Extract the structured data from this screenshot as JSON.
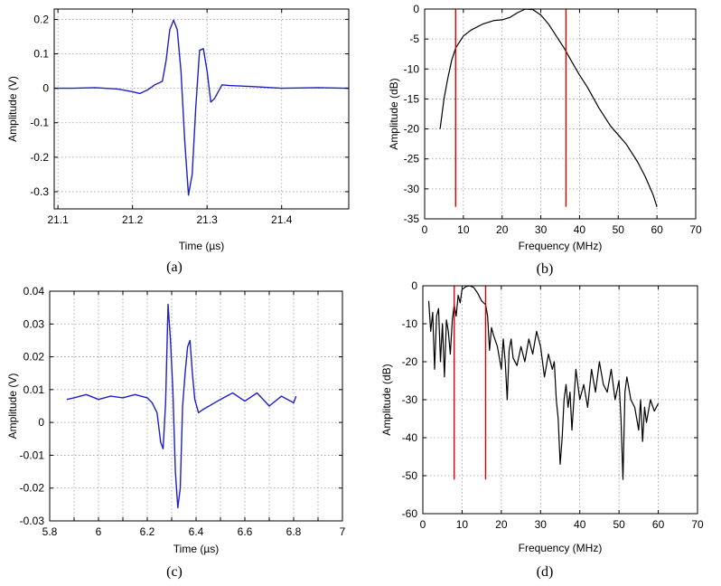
{
  "chart_data": [
    {
      "type": "line",
      "panel": "a",
      "caption": "(a)",
      "title": "",
      "xlabel": "Time (µs)",
      "ylabel": "Amplitude (V)",
      "xlim": [
        21.095,
        21.49
      ],
      "ylim": [
        -0.35,
        0.23
      ],
      "xticks": [
        21.1,
        21.2,
        21.3,
        21.4
      ],
      "xtick_labels": [
        "21.1",
        "21.2",
        "21.3",
        "21.4"
      ],
      "yticks": [
        -0.3,
        -0.2,
        -0.1,
        0,
        0.1,
        0.2
      ],
      "ytick_labels": [
        "-0.3",
        "-0.2",
        "-0.1",
        "0",
        "0.1",
        "0.2"
      ],
      "grid": true,
      "series": [
        {
          "name": "waveform",
          "color": "#1f1fc8",
          "x": [
            21.095,
            21.12,
            21.15,
            21.18,
            21.2,
            21.21,
            21.22,
            21.23,
            21.24,
            21.245,
            21.25,
            21.255,
            21.26,
            21.265,
            21.27,
            21.275,
            21.28,
            21.285,
            21.29,
            21.295,
            21.3,
            21.305,
            21.31,
            21.32,
            21.33,
            21.36,
            21.4,
            21.45,
            21.49
          ],
          "y": [
            0.0,
            0.0,
            0.002,
            -0.002,
            -0.01,
            -0.015,
            -0.005,
            0.01,
            0.02,
            0.08,
            0.17,
            0.198,
            0.17,
            0.05,
            -0.15,
            -0.31,
            -0.25,
            -0.05,
            0.11,
            0.115,
            0.05,
            -0.04,
            -0.03,
            0.01,
            0.008,
            0.005,
            0.0,
            0.002,
            0.0
          ]
        }
      ]
    },
    {
      "type": "line",
      "panel": "b",
      "caption": "(b)",
      "title": "",
      "xlabel": "Frequency (MHz)",
      "ylabel": "Amplitude (dB)",
      "xlim": [
        0,
        70
      ],
      "ylim": [
        -35,
        0
      ],
      "xticks": [
        0,
        10,
        20,
        30,
        40,
        50,
        60,
        70
      ],
      "xtick_labels": [
        "0",
        "10",
        "20",
        "30",
        "40",
        "50",
        "60",
        "70"
      ],
      "yticks": [
        -35,
        -30,
        -25,
        -20,
        -15,
        -10,
        -5,
        0
      ],
      "ytick_labels": [
        "-35",
        "-30",
        "-25",
        "-20",
        "-15",
        "-10",
        "-5",
        "0"
      ],
      "grid": true,
      "series": [
        {
          "name": "spectrum",
          "color": "#000000",
          "x": [
            4,
            5,
            6,
            7,
            8,
            10,
            12,
            15,
            18,
            20,
            22,
            24,
            26,
            28,
            30,
            32,
            34,
            36,
            38,
            40,
            42,
            45,
            48,
            50,
            52,
            55,
            57,
            59,
            60
          ],
          "y": [
            -20,
            -15,
            -11.5,
            -8.5,
            -6.5,
            -4.5,
            -3.5,
            -2.5,
            -1.9,
            -1.8,
            -1.4,
            -0.6,
            0,
            -0.1,
            -1,
            -2.5,
            -4.5,
            -6.5,
            -8.8,
            -11,
            -13,
            -16.5,
            -19.5,
            -21,
            -22.5,
            -25.5,
            -28,
            -31,
            -33
          ]
        },
        {
          "name": "cutoff-low",
          "color": "#e00000",
          "x": [
            8.0,
            8.0
          ],
          "y": [
            -33,
            0
          ]
        },
        {
          "name": "cutoff-high",
          "color": "#e00000",
          "x": [
            36.5,
            36.5
          ],
          "y": [
            -33,
            0
          ]
        }
      ]
    },
    {
      "type": "line",
      "panel": "c",
      "caption": "(c)",
      "title": "",
      "xlabel": "Time (µs)",
      "ylabel": "Amplitude (V)",
      "xlim": [
        5.8,
        7
      ],
      "ylim": [
        -0.03,
        0.04
      ],
      "xticks": [
        5.8,
        5.9,
        6.0,
        6.1,
        6.2,
        6.3,
        6.4,
        6.5,
        6.6,
        6.7,
        6.8,
        6.9,
        7.0
      ],
      "xtick_labels": [
        "5.8",
        "",
        "6",
        "",
        "6.2",
        "",
        "6.4",
        "",
        "6.6",
        "",
        "6.8",
        "",
        "7"
      ],
      "yticks": [
        -0.03,
        -0.02,
        -0.01,
        0,
        0.01,
        0.02,
        0.03,
        0.04
      ],
      "ytick_labels": [
        "-0.03",
        "-0.02",
        "-0.01",
        "0",
        "0.01",
        "0.02",
        "0.03",
        "0.04"
      ],
      "grid": true,
      "series": [
        {
          "name": "waveform",
          "color": "#1f1fc8",
          "x": [
            5.87,
            5.9,
            5.95,
            6.0,
            6.05,
            6.1,
            6.15,
            6.2,
            6.22,
            6.24,
            6.255,
            6.265,
            6.275,
            6.285,
            6.295,
            6.305,
            6.315,
            6.325,
            6.335,
            6.345,
            6.355,
            6.365,
            6.375,
            6.385,
            6.395,
            6.41,
            6.43,
            6.5,
            6.55,
            6.6,
            6.65,
            6.7,
            6.75,
            6.8,
            6.81
          ],
          "y": [
            0.007,
            0.0075,
            0.0085,
            0.007,
            0.008,
            0.0075,
            0.0085,
            0.0075,
            0.006,
            0.003,
            -0.006,
            -0.008,
            0.006,
            0.036,
            0.025,
            0.01,
            -0.015,
            -0.026,
            -0.02,
            0.005,
            0.015,
            0.023,
            0.025,
            0.015,
            0.007,
            0.003,
            0.004,
            0.007,
            0.009,
            0.0065,
            0.009,
            0.005,
            0.008,
            0.006,
            0.008
          ]
        }
      ]
    },
    {
      "type": "line",
      "panel": "d",
      "caption": "(d)",
      "title": "",
      "xlabel": "Frequency (MHz)",
      "ylabel": "Amplitude (dB)",
      "xlim": [
        0,
        70
      ],
      "ylim": [
        -60,
        0
      ],
      "xticks": [
        0,
        10,
        20,
        30,
        40,
        50,
        60,
        70
      ],
      "xtick_labels": [
        "0",
        "10",
        "20",
        "30",
        "40",
        "50",
        "60",
        "70"
      ],
      "yticks": [
        -60,
        -50,
        -40,
        -30,
        -20,
        -10,
        0
      ],
      "ytick_labels": [
        "-60",
        "-50",
        "-40",
        "-30",
        "-20",
        "-10",
        "0"
      ],
      "grid": true,
      "series": [
        {
          "name": "spectrum",
          "color": "#000000",
          "x": [
            1.5,
            2,
            2.5,
            3,
            3.5,
            4,
            4.5,
            5,
            5.5,
            6,
            6.5,
            7,
            7.5,
            8,
            8.5,
            9,
            9.5,
            10,
            11,
            12,
            13,
            14,
            15,
            16,
            16.5,
            17,
            17.5,
            18,
            19,
            20,
            20.5,
            21,
            21.5,
            22,
            22.5,
            23,
            24,
            25,
            26,
            27,
            28,
            29,
            30,
            31,
            32,
            33,
            33.5,
            34,
            34.5,
            35,
            35.5,
            36,
            36.5,
            37,
            37.5,
            38,
            38.5,
            39,
            40,
            41,
            42,
            43,
            44,
            45,
            46,
            47,
            48,
            49,
            50,
            50.5,
            51,
            51.5,
            52,
            53,
            54,
            55,
            55.5,
            56,
            56.5,
            57,
            58,
            59,
            60
          ],
          "y": [
            -4,
            -12,
            -7,
            -22,
            -8,
            -6,
            -20,
            -10,
            -24,
            -9,
            -12,
            -18,
            -9,
            -5,
            -8,
            -2.5,
            -4.5,
            -1,
            -0.2,
            0,
            -0.5,
            -2,
            -4,
            -5,
            -8,
            -17,
            -11,
            -13,
            -16,
            -22,
            -14,
            -20,
            -30,
            -17,
            -14,
            -19,
            -21,
            -16,
            -20,
            -14,
            -18,
            -12,
            -16,
            -24,
            -18,
            -22,
            -20,
            -30,
            -35,
            -47,
            -40,
            -30,
            -26,
            -32,
            -28,
            -38,
            -30,
            -22,
            -30,
            -26,
            -32,
            -22,
            -28,
            -20,
            -26,
            -28,
            -22,
            -30,
            -25,
            -35,
            -51,
            -28,
            -24,
            -30,
            -32,
            -38,
            -30,
            -41,
            -32,
            -36,
            -30,
            -33,
            -31
          ]
        },
        {
          "name": "cutoff-low",
          "color": "#e00000",
          "x": [
            8.0,
            8.0
          ],
          "y": [
            -51,
            0
          ]
        },
        {
          "name": "cutoff-high",
          "color": "#e00000",
          "x": [
            16.0,
            16.0
          ],
          "y": [
            -51,
            0
          ]
        }
      ]
    }
  ]
}
